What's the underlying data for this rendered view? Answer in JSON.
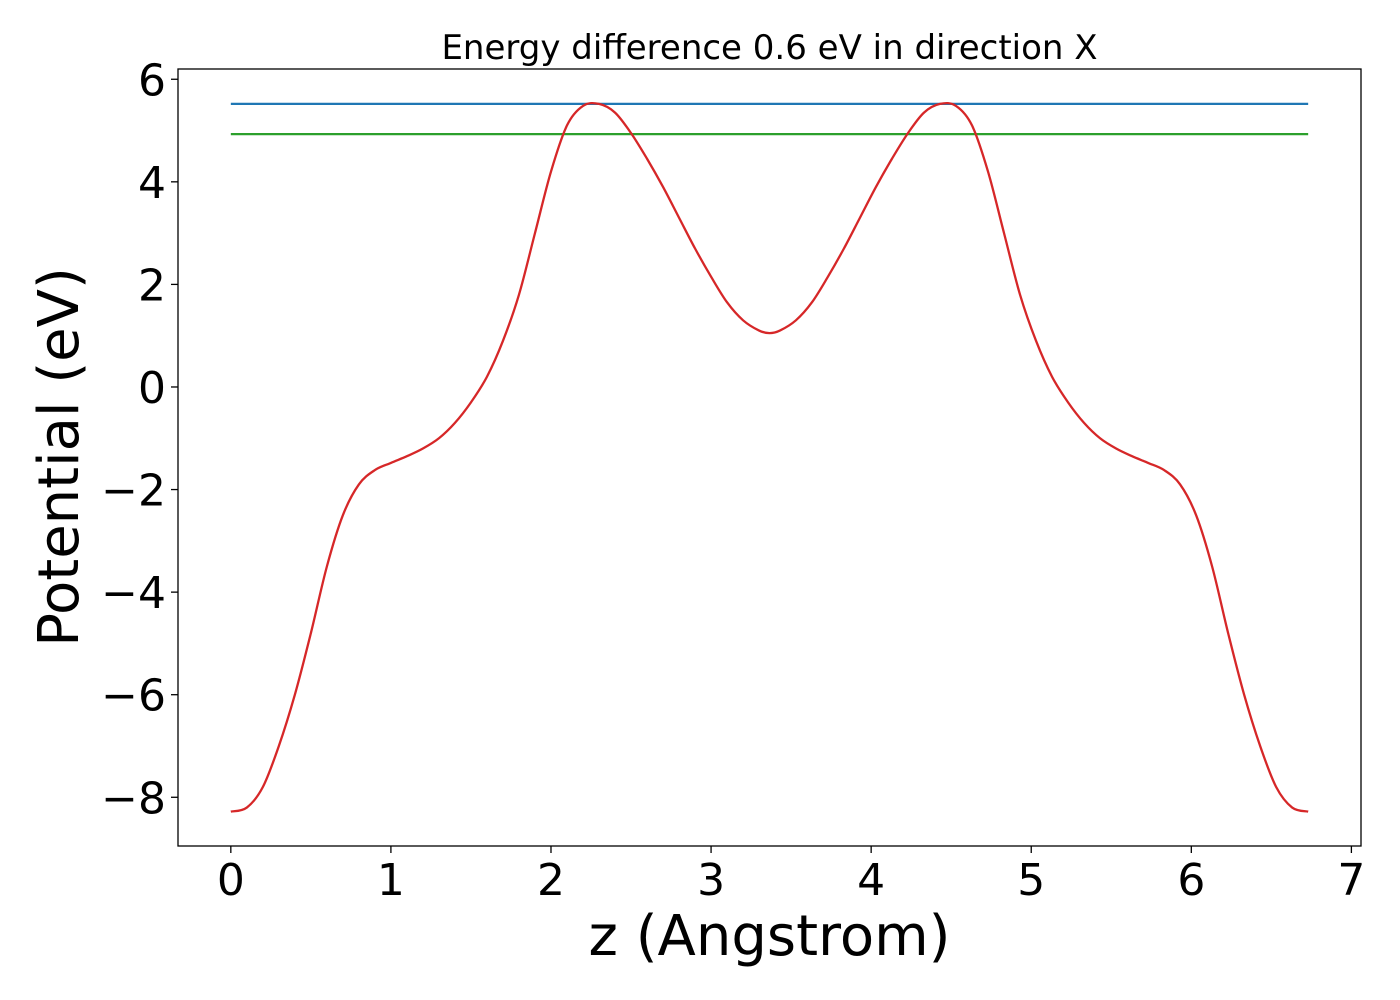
{
  "chart_data": {
    "type": "line",
    "title": "Energy difference 0.6 eV in direction X",
    "xlabel": "z (Angstrom)",
    "ylabel": "Potential (eV)",
    "xlim": [
      -0.33,
      7.06
    ],
    "ylim": [
      -8.95,
      6.2
    ],
    "xticks": [
      0,
      1,
      2,
      3,
      4,
      5,
      6,
      7
    ],
    "xtick_labels": [
      "0",
      "1",
      "2",
      "3",
      "4",
      "5",
      "6",
      "7"
    ],
    "yticks": [
      -8,
      -6,
      -4,
      -2,
      0,
      2,
      4,
      6
    ],
    "ytick_labels": [
      "−8",
      "−6",
      "−4",
      "−2",
      "0",
      "2",
      "4",
      "6"
    ],
    "grid": false,
    "series": [
      {
        "color": "#1f77b4",
        "x": [
          0,
          6.73
        ],
        "y": [
          5.52,
          5.52
        ]
      },
      {
        "color": "#2ca02c",
        "x": [
          0,
          6.73
        ],
        "y": [
          4.93,
          4.93
        ]
      },
      {
        "color": "#d62728",
        "x": [
          0,
          0.1,
          0.2,
          0.3,
          0.4,
          0.5,
          0.6,
          0.7,
          0.8,
          0.9,
          1.0,
          1.1,
          1.2,
          1.3,
          1.4,
          1.5,
          1.6,
          1.7,
          1.8,
          1.9,
          2.0,
          2.1,
          2.2,
          2.3,
          2.4,
          2.5,
          2.6,
          2.7,
          2.8,
          2.9,
          3.0,
          3.1,
          3.2,
          3.3,
          3.365,
          3.43,
          3.53,
          3.63,
          3.73,
          3.83,
          3.93,
          4.03,
          4.13,
          4.23,
          4.33,
          4.43,
          4.53,
          4.63,
          4.73,
          4.83,
          4.93,
          5.03,
          5.13,
          5.23,
          5.33,
          5.43,
          5.53,
          5.63,
          5.73,
          5.83,
          5.93,
          6.03,
          6.13,
          6.23,
          6.33,
          6.43,
          6.53,
          6.63,
          6.73
        ],
        "y": [
          -8.28,
          -8.2,
          -7.8,
          -7.0,
          -6.0,
          -4.8,
          -3.5,
          -2.5,
          -1.9,
          -1.62,
          -1.48,
          -1.35,
          -1.2,
          -1.0,
          -0.7,
          -0.3,
          0.2,
          0.9,
          1.8,
          3.0,
          4.2,
          5.1,
          5.48,
          5.52,
          5.35,
          4.95,
          4.45,
          3.9,
          3.3,
          2.7,
          2.15,
          1.65,
          1.3,
          1.1,
          1.05,
          1.1,
          1.3,
          1.65,
          2.15,
          2.7,
          3.3,
          3.9,
          4.45,
          4.95,
          5.35,
          5.52,
          5.48,
          5.1,
          4.2,
          3.0,
          1.8,
          0.9,
          0.2,
          -0.3,
          -0.7,
          -1.0,
          -1.2,
          -1.35,
          -1.48,
          -1.62,
          -1.9,
          -2.5,
          -3.5,
          -4.8,
          -6.0,
          -7.0,
          -7.8,
          -8.2,
          -8.28
        ]
      }
    ]
  }
}
